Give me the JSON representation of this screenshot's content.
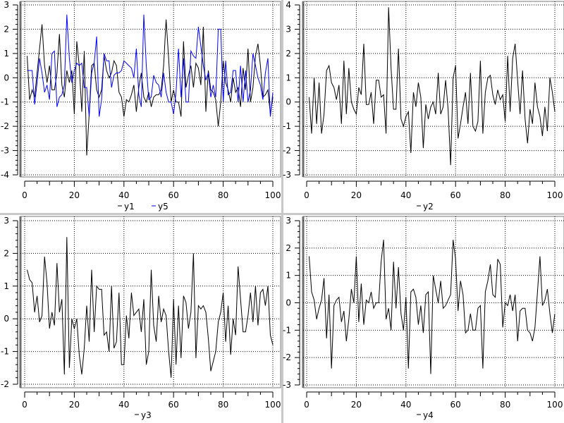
{
  "chart_data": [
    {
      "type": "line",
      "x": [
        1,
        2,
        3,
        4,
        5,
        6,
        7,
        8,
        9,
        10,
        11,
        12,
        13,
        14,
        15,
        16,
        17,
        18,
        19,
        20,
        21,
        22,
        23,
        24,
        25,
        26,
        27,
        28,
        29,
        30,
        31,
        32,
        33,
        34,
        35,
        36,
        37,
        38,
        39,
        40,
        41,
        42,
        43,
        44,
        45,
        46,
        47,
        48,
        49,
        50,
        51,
        52,
        53,
        54,
        55,
        56,
        57,
        58,
        59,
        60,
        61,
        62,
        63,
        64,
        65,
        66,
        67,
        68,
        69,
        70,
        71,
        72,
        73,
        74,
        75,
        76,
        77,
        78,
        79,
        80,
        81,
        82,
        83,
        84,
        85,
        86,
        87,
        88,
        89,
        90,
        91,
        92,
        93,
        94,
        95,
        96,
        97,
        98,
        99,
        100
      ],
      "xlim": [
        0,
        100
      ],
      "ylim": [
        -4,
        3
      ],
      "xticks": [
        0,
        20,
        40,
        60,
        80,
        100
      ],
      "yticks": [
        -4,
        -3,
        -2,
        -1,
        0,
        1,
        2,
        3
      ],
      "grid": true,
      "legend_placement": "bottom",
      "series": [
        {
          "name": "y1",
          "color": "#000000",
          "values": [
            0.9,
            -0.9,
            -0.5,
            -0.8,
            0.2,
            1.2,
            2.2,
            0.5,
            -0.2,
            0.5,
            -0.5,
            -0.5,
            0.2,
            1.8,
            -0.3,
            -0.8,
            0.3,
            -0.2,
            0.3,
            -1.5,
            1.5,
            0.5,
            -1.4,
            1.1,
            -3.2,
            -1.5,
            0.5,
            0.6,
            -0.5,
            -0.8,
            -0.5,
            0.9,
            0.3,
            0.0,
            0.2,
            0.7,
            0.5,
            -0.6,
            -0.8,
            -1.6,
            -0.9,
            -1.0,
            -0.7,
            -0.3,
            -1.4,
            -0.4,
            0.2,
            -0.8,
            -1.0,
            -0.6,
            -1.2,
            -0.8,
            -0.7,
            -0.7,
            -0.5,
            0.5,
            2.4,
            0.8,
            -1.0,
            -0.5,
            -1.0,
            -1.0,
            -1.6,
            1.5,
            -0.4,
            0.1,
            0.5,
            -0.4,
            0.6,
            0.4,
            -0.3,
            2.1,
            -1.4,
            0.3,
            -0.5,
            -0.6,
            -0.9,
            -2.0,
            -1.0,
            0.7,
            -0.2,
            -0.5,
            -1.0,
            0.0,
            -0.6,
            -0.4,
            -1.2,
            0.4,
            -0.5,
            1.2,
            -1.0,
            -0.4,
            0.9,
            1.4,
            0.5,
            -0.8,
            -0.7,
            -0.5,
            -1.5,
            -0.8
          ]
        },
        {
          "name": "y5",
          "color": "#0000ff",
          "values": [
            0.3,
            0.3,
            0.3,
            -1.1,
            -0.2,
            0.8,
            0.2,
            -0.6,
            -0.3,
            -0.9,
            1.0,
            1.1,
            -1.2,
            -0.8,
            -0.7,
            -0.3,
            2.6,
            0.8,
            -0.2,
            0.3,
            0.6,
            0.5,
            0.6,
            -0.4,
            -0.4,
            -1.6,
            0.2,
            0.6,
            1.7,
            -1.6,
            -0.9,
            1.0,
            0.7,
            0.7,
            -0.4,
            0.1,
            0.2,
            0.2,
            0.3,
            0.7,
            0.6,
            0.5,
            0.4,
            0.0,
            1.2,
            -0.7,
            -1.2,
            2.6,
            0.5,
            -0.9,
            -0.8,
            0.1,
            -0.2,
            -0.3,
            -0.8,
            0.2,
            -0.6,
            -1.0,
            -1.0,
            -1.5,
            -0.6,
            1.2,
            -0.8,
            0.8,
            -1.0,
            -1.0,
            1.1,
            0.9,
            0.8,
            2.1,
            1.3,
            0.5,
            -0.1,
            0.2,
            -0.8,
            -0.3,
            -0.8,
            2.0,
            2.0,
            -1.0,
            0.7,
            -0.7,
            -0.6,
            0.3,
            0.3,
            -1.0,
            0.5,
            -1.0,
            0.3,
            -1.0,
            -0.5,
            1.0,
            0.5,
            0.0,
            -0.3,
            -0.9,
            0.2,
            0.8,
            -1.6,
            -0.6
          ]
        }
      ]
    },
    {
      "type": "line",
      "x": [
        1,
        2,
        3,
        4,
        5,
        6,
        7,
        8,
        9,
        10,
        11,
        12,
        13,
        14,
        15,
        16,
        17,
        18,
        19,
        20,
        21,
        22,
        23,
        24,
        25,
        26,
        27,
        28,
        29,
        30,
        31,
        32,
        33,
        34,
        35,
        36,
        37,
        38,
        39,
        40,
        41,
        42,
        43,
        44,
        45,
        46,
        47,
        48,
        49,
        50,
        51,
        52,
        53,
        54,
        55,
        56,
        57,
        58,
        59,
        60,
        61,
        62,
        63,
        64,
        65,
        66,
        67,
        68,
        69,
        70,
        71,
        72,
        73,
        74,
        75,
        76,
        77,
        78,
        79,
        80,
        81,
        82,
        83,
        84,
        85,
        86,
        87,
        88,
        89,
        90,
        91,
        92,
        93,
        94,
        95,
        96,
        97,
        98,
        99,
        100
      ],
      "xlim": [
        0,
        100
      ],
      "ylim": [
        -3,
        4
      ],
      "xticks": [
        0,
        20,
        40,
        60,
        80,
        100
      ],
      "yticks": [
        -3,
        -2,
        -1,
        0,
        1,
        2,
        3,
        4
      ],
      "grid": true,
      "legend_placement": "bottom",
      "series": [
        {
          "name": "y2",
          "color": "#000000",
          "values": [
            0.2,
            -1.3,
            1.0,
            -0.9,
            0.8,
            -1.3,
            -0.5,
            1.3,
            1.5,
            0.8,
            0.6,
            0.1,
            0.7,
            -0.9,
            1.7,
            -0.5,
            1.4,
            0.0,
            -0.3,
            -0.5,
            0.6,
            0.3,
            2.4,
            -0.1,
            -0.1,
            0.4,
            -0.9,
            0.9,
            0.9,
            0.2,
            0.3,
            -1.3,
            3.9,
            1.4,
            -0.3,
            -0.3,
            2.2,
            -0.7,
            -1.0,
            -0.6,
            -0.4,
            -2.1,
            0.4,
            -0.2,
            0.8,
            0.2,
            -1.9,
            -0.1,
            -0.7,
            -0.2,
            0.0,
            -0.5,
            1.2,
            -0.5,
            -0.2,
            0.9,
            -0.3,
            -2.6,
            1.0,
            1.5,
            -1.5,
            -0.9,
            -0.2,
            0.4,
            -0.9,
            1.2,
            -1.0,
            -1.2,
            -0.8,
            1.7,
            -1.3,
            0.4,
            1.0,
            1.1,
            0.3,
            -0.1,
            0.5,
            0.1,
            0.3,
            -0.8,
            1.9,
            -0.4,
            1.8,
            2.4,
            0.9,
            -0.5,
            1.3,
            -0.7,
            -1.7,
            -0.3,
            -0.9,
            0.8,
            -0.2,
            -0.6,
            -1.4,
            -0.2,
            -1.2,
            1.0,
            0.4,
            -0.4
          ]
        }
      ]
    },
    {
      "type": "line",
      "x": [
        1,
        2,
        3,
        4,
        5,
        6,
        7,
        8,
        9,
        10,
        11,
        12,
        13,
        14,
        15,
        16,
        17,
        18,
        19,
        20,
        21,
        22,
        23,
        24,
        25,
        26,
        27,
        28,
        29,
        30,
        31,
        32,
        33,
        34,
        35,
        36,
        37,
        38,
        39,
        40,
        41,
        42,
        43,
        44,
        45,
        46,
        47,
        48,
        49,
        50,
        51,
        52,
        53,
        54,
        55,
        56,
        57,
        58,
        59,
        60,
        61,
        62,
        63,
        64,
        65,
        66,
        67,
        68,
        69,
        70,
        71,
        72,
        73,
        74,
        75,
        76,
        77,
        78,
        79,
        80,
        81,
        82,
        83,
        84,
        85,
        86,
        87,
        88,
        89,
        90,
        91,
        92,
        93,
        94,
        95,
        96,
        97,
        98,
        99,
        100
      ],
      "xlim": [
        0,
        100
      ],
      "ylim": [
        -2,
        3
      ],
      "xticks": [
        0,
        20,
        40,
        60,
        80,
        100
      ],
      "yticks": [
        -2,
        -1,
        0,
        1,
        2,
        3
      ],
      "grid": true,
      "legend_placement": "bottom",
      "series": [
        {
          "name": "y3",
          "color": "#000000",
          "values": [
            1.5,
            1.2,
            1.1,
            0.2,
            0.7,
            -0.1,
            0.1,
            1.9,
            1.1,
            -0.3,
            0.2,
            -0.2,
            1.7,
            0.2,
            0.6,
            -1.7,
            2.5,
            -1.5,
            0.0,
            -0.3,
            0.0,
            -1.1,
            -1.7,
            -0.9,
            0.4,
            -0.7,
            1.5,
            -0.4,
            1.0,
            0.9,
            0.9,
            -0.5,
            -0.4,
            -1.0,
            1.0,
            -0.9,
            -0.7,
            0.8,
            -1.4,
            -1.4,
            0.1,
            -0.6,
            0.8,
            0.1,
            0.2,
            0.3,
            -0.4,
            0.6,
            -1.4,
            -1.0,
            1.5,
            -0.2,
            -0.7,
            0.7,
            -0.1,
            0.3,
            0.1,
            -1.0,
            -1.8,
            0.6,
            -1.4,
            0.4,
            -1.2,
            0.7,
            0.5,
            -0.3,
            0.2,
            2.0,
            -1.2,
            0.4,
            0.3,
            0.4,
            0.2,
            -0.6,
            -1.6,
            -1.3,
            -1.0,
            -0.1,
            0.2,
            0.8,
            -0.7,
            0.4,
            -1.1,
            0.0,
            -0.5,
            1.6,
            0.6,
            -0.4,
            -0.4,
            0.1,
            0.8,
            -0.1,
            1.0,
            -0.2,
            0.8,
            0.9,
            0.4,
            1.0,
            -0.5,
            -0.8
          ]
        }
      ]
    },
    {
      "type": "line",
      "x": [
        1,
        2,
        3,
        4,
        5,
        6,
        7,
        8,
        9,
        10,
        11,
        12,
        13,
        14,
        15,
        16,
        17,
        18,
        19,
        20,
        21,
        22,
        23,
        24,
        25,
        26,
        27,
        28,
        29,
        30,
        31,
        32,
        33,
        34,
        35,
        36,
        37,
        38,
        39,
        40,
        41,
        42,
        43,
        44,
        45,
        46,
        47,
        48,
        49,
        50,
        51,
        52,
        53,
        54,
        55,
        56,
        57,
        58,
        59,
        60,
        61,
        62,
        63,
        64,
        65,
        66,
        67,
        68,
        69,
        70,
        71,
        72,
        73,
        74,
        75,
        76,
        77,
        78,
        79,
        80,
        81,
        82,
        83,
        84,
        85,
        86,
        87,
        88,
        89,
        90,
        91,
        92,
        93,
        94,
        95,
        96,
        97,
        98,
        99,
        100
      ],
      "xlim": [
        0,
        100
      ],
      "ylim": [
        -3,
        3
      ],
      "xticks": [
        0,
        20,
        40,
        60,
        80,
        100
      ],
      "yticks": [
        -3,
        -2,
        -1,
        0,
        1,
        2,
        3
      ],
      "grid": true,
      "legend_placement": "bottom",
      "series": [
        {
          "name": "y4",
          "color": "#000000",
          "values": [
            1.7,
            0.4,
            0.1,
            -0.6,
            -0.2,
            0.1,
            0.9,
            -1.3,
            0.3,
            -2.4,
            -0.1,
            0.1,
            0.2,
            -0.7,
            -0.3,
            -1.4,
            -0.6,
            0.5,
            0.0,
            1.7,
            -0.7,
            0.7,
            -0.8,
            0.1,
            0.0,
            0.4,
            -0.2,
            0.0,
            0.0,
            1.5,
            2.3,
            -0.6,
            -0.2,
            -1.0,
            1.5,
            -0.2,
            1.3,
            -0.4,
            -1.0,
            0.2,
            -2.4,
            0.4,
            0.5,
            0.2,
            -0.8,
            -0.1,
            -1.1,
            0.3,
            0.4,
            -2.6,
            1.0,
            0.5,
            0.0,
            0.8,
            -0.2,
            -0.1,
            0.1,
            0.3,
            2.3,
            1.6,
            -0.3,
            0.8,
            0.3,
            -1.1,
            -1.0,
            -0.4,
            -1.0,
            -1.0,
            -0.2,
            -0.1,
            -2.4,
            0.4,
            0.8,
            1.4,
            0.3,
            0.2,
            1.6,
            1.4,
            -0.9,
            0.0,
            -0.1,
            0.3,
            -0.3,
            0.3,
            -1.4,
            -0.3,
            -0.2,
            -0.2,
            -1.0,
            -1.1,
            -1.4,
            -0.9,
            0.4,
            1.7,
            -0.1,
            0.1,
            0.5,
            -0.4,
            -1.1,
            -0.4
          ]
        }
      ]
    }
  ]
}
